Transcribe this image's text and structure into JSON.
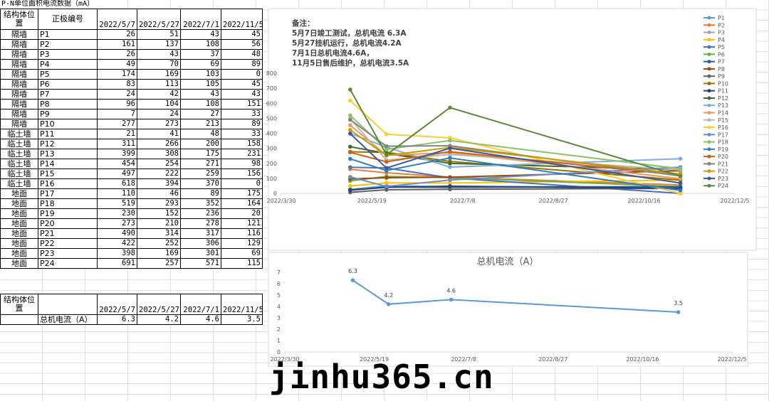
{
  "sheet_title": "P-N单位面积电流数据（mA）",
  "table": {
    "headers": [
      "结构体位置",
      "正极编号",
      "2022/5/7",
      "2022/5/27",
      "2022/7/1",
      "2022/11/5"
    ],
    "rows": [
      [
        "隔墙",
        "P1",
        26,
        51,
        43,
        45
      ],
      [
        "隔墙",
        "P2",
        161,
        137,
        108,
        56
      ],
      [
        "隔墙",
        "P3",
        26,
        43,
        37,
        48
      ],
      [
        "隔墙",
        "P4",
        49,
        70,
        69,
        89
      ],
      [
        "隔墙",
        "P5",
        174,
        169,
        103,
        0
      ],
      [
        "隔墙",
        "P6",
        83,
        113,
        105,
        45
      ],
      [
        "隔墙",
        "P7",
        24,
        42,
        43,
        43
      ],
      [
        "隔墙",
        "P8",
        96,
        104,
        108,
        151
      ],
      [
        "隔墙",
        "P9",
        7,
        24,
        27,
        33
      ],
      [
        "隔墙",
        "P10",
        277,
        273,
        213,
        89
      ],
      [
        "临土墙",
        "P11",
        21,
        41,
        48,
        33
      ],
      [
        "临土墙",
        "P12",
        311,
        266,
        200,
        158
      ],
      [
        "临土墙",
        "P13",
        399,
        308,
        175,
        231
      ],
      [
        "临土墙",
        "P14",
        454,
        254,
        271,
        98
      ],
      [
        "临土墙",
        "P15",
        497,
        222,
        259,
        156
      ],
      [
        "临土墙",
        "P16",
        618,
        394,
        370,
        0
      ],
      [
        "地面",
        "P17",
        110,
        46,
        89,
        175
      ],
      [
        "地面",
        "P18",
        519,
        293,
        352,
        164
      ],
      [
        "地面",
        "P19",
        230,
        152,
        236,
        20
      ],
      [
        "地面",
        "P20",
        273,
        210,
        278,
        121
      ],
      [
        "地面",
        "P21",
        490,
        314,
        317,
        116
      ],
      [
        "地面",
        "P22",
        422,
        252,
        306,
        129
      ],
      [
        "地面",
        "P23",
        398,
        169,
        301,
        69
      ],
      [
        "地面",
        "P24",
        691,
        257,
        571,
        115
      ]
    ]
  },
  "table2": {
    "headers": [
      "结构体位置",
      "2022/5/7",
      "2022/5/27",
      "2022/7/1",
      "2022/11/5"
    ],
    "rows": [
      [
        "总机电流（A）",
        6.3,
        4.2,
        4.6,
        3.5
      ]
    ]
  },
  "watermark": "jinhu365.cn",
  "chart_data": [
    {
      "type": "line",
      "annotations": [
        "备注：",
        "5月7日竣工测试，总机电流 6.3A",
        "5月27挂机运行，总机电流4.2A",
        "7月1日总机电流4.6A，",
        "11月5日售后维护，总机电流3.5A"
      ],
      "x": [
        "2022/5/7",
        "2022/5/27",
        "2022/7/1",
        "2022/11/5"
      ],
      "xlim": [
        "2022/3/30",
        "2022/12/5"
      ],
      "xticks": [
        "2022/3/30",
        "2022/5/19",
        "2022/7/8",
        "2022/8/27",
        "2022/10/16",
        "2022/12/5"
      ],
      "ylim": [
        0,
        800
      ],
      "yticks": [
        0,
        100,
        200,
        300,
        400,
        500,
        600,
        700,
        800
      ],
      "grid": false,
      "legend": "right",
      "series": [
        {
          "name": "P1",
          "color": "#5b9bd5",
          "values": [
            26,
            51,
            43,
            45
          ]
        },
        {
          "name": "P2",
          "color": "#ed7d31",
          "values": [
            161,
            137,
            108,
            56
          ]
        },
        {
          "name": "P3",
          "color": "#a5a5a5",
          "values": [
            26,
            43,
            37,
            48
          ]
        },
        {
          "name": "P4",
          "color": "#ffc000",
          "values": [
            49,
            70,
            69,
            89
          ]
        },
        {
          "name": "P5",
          "color": "#4472c4",
          "values": [
            174,
            169,
            103,
            0
          ]
        },
        {
          "name": "P6",
          "color": "#70ad47",
          "values": [
            83,
            113,
            105,
            45
          ]
        },
        {
          "name": "P7",
          "color": "#255e91",
          "values": [
            24,
            42,
            43,
            43
          ]
        },
        {
          "name": "P8",
          "color": "#9e480e",
          "values": [
            96,
            104,
            108,
            151
          ]
        },
        {
          "name": "P9",
          "color": "#636363",
          "values": [
            7,
            24,
            27,
            33
          ]
        },
        {
          "name": "P10",
          "color": "#997300",
          "values": [
            277,
            273,
            213,
            89
          ]
        },
        {
          "name": "P11",
          "color": "#264478",
          "values": [
            21,
            41,
            48,
            33
          ]
        },
        {
          "name": "P12",
          "color": "#43682b",
          "values": [
            311,
            266,
            200,
            158
          ]
        },
        {
          "name": "P13",
          "color": "#7cafdd",
          "values": [
            399,
            308,
            175,
            231
          ]
        },
        {
          "name": "P14",
          "color": "#f1975a",
          "values": [
            454,
            254,
            271,
            98
          ]
        },
        {
          "name": "P15",
          "color": "#b7b7b7",
          "values": [
            497,
            222,
            259,
            156
          ]
        },
        {
          "name": "P16",
          "color": "#ffcd33",
          "values": [
            618,
            394,
            370,
            0
          ]
        },
        {
          "name": "P17",
          "color": "#698ed0",
          "values": [
            110,
            46,
            89,
            175
          ]
        },
        {
          "name": "P18",
          "color": "#8cc168",
          "values": [
            519,
            293,
            352,
            164
          ]
        },
        {
          "name": "P19",
          "color": "#327dc2",
          "values": [
            230,
            152,
            236,
            20
          ]
        },
        {
          "name": "P20",
          "color": "#d26012",
          "values": [
            273,
            210,
            278,
            121
          ]
        },
        {
          "name": "P21",
          "color": "#848484",
          "values": [
            490,
            314,
            317,
            116
          ]
        },
        {
          "name": "P22",
          "color": "#cc9a00",
          "values": [
            422,
            252,
            306,
            129
          ]
        },
        {
          "name": "P23",
          "color": "#335aa1",
          "values": [
            398,
            169,
            301,
            69
          ]
        },
        {
          "name": "P24",
          "color": "#5a8a39",
          "values": [
            691,
            257,
            571,
            115
          ]
        }
      ]
    },
    {
      "type": "line",
      "title": "总机电流（A）",
      "x": [
        "2022/5/7",
        "2022/5/27",
        "2022/7/1",
        "2022/11/5"
      ],
      "xlim": [
        "2022/3/30",
        "2022/12/5"
      ],
      "xticks": [
        "2022/3/30",
        "2022/5/19",
        "2022/7/8",
        "2022/8/27",
        "2022/10/16",
        "2022/12/5"
      ],
      "ylim": [
        0,
        7
      ],
      "yticks": [
        0,
        1,
        2,
        3,
        4,
        5,
        6,
        7
      ],
      "grid": false,
      "data_labels": true,
      "series": [
        {
          "name": "总机电流",
          "color": "#5b9bd5",
          "values": [
            6.3,
            4.2,
            4.6,
            3.5
          ]
        }
      ]
    }
  ]
}
